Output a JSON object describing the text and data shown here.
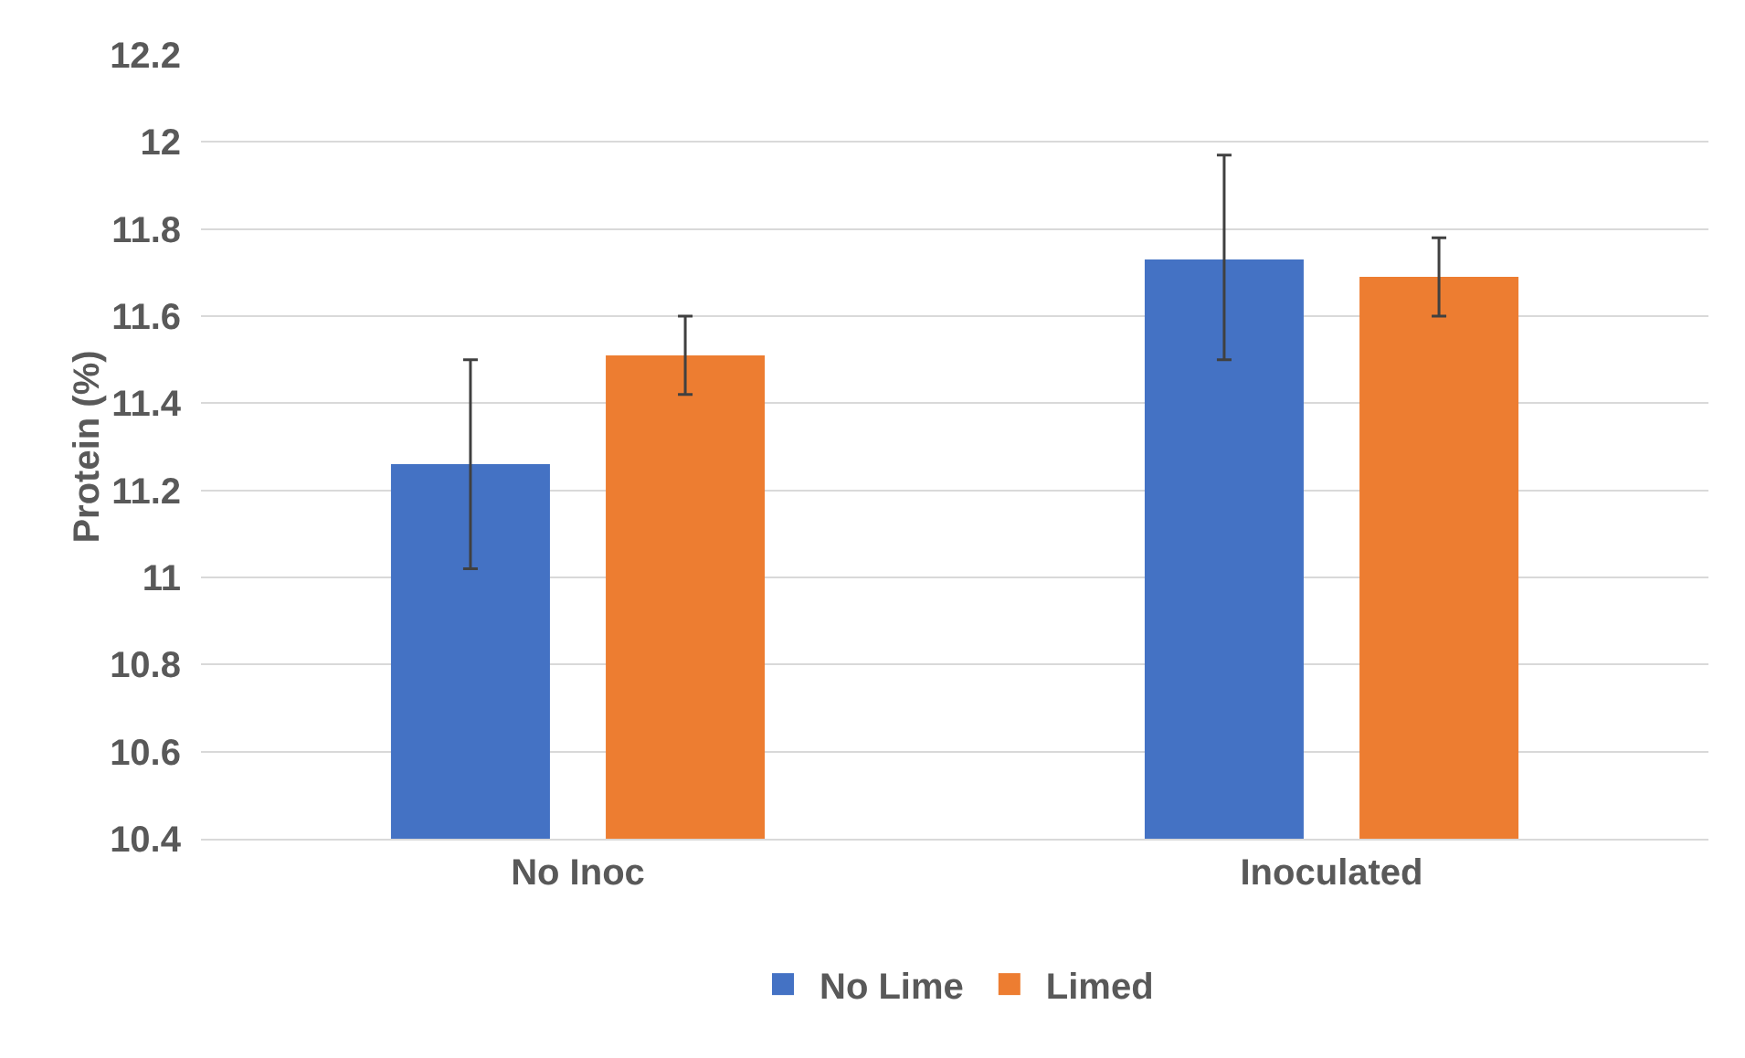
{
  "chart_data": {
    "type": "bar",
    "ylabel": "Protein (%)",
    "categories": [
      "No Inoc",
      "Inoculated"
    ],
    "series": [
      {
        "name": "No Lime",
        "color": "#4472c4",
        "values": [
          11.26,
          11.73
        ],
        "errors": [
          [
            11.02,
            11.5
          ],
          [
            11.5,
            11.97
          ]
        ]
      },
      {
        "name": "Limed",
        "color": "#ed7d31",
        "values": [
          11.51,
          11.69
        ],
        "errors": [
          [
            11.42,
            11.6
          ],
          [
            11.6,
            11.78
          ]
        ]
      }
    ],
    "ylim": [
      10.4,
      12.2
    ],
    "yticks": [
      10.4,
      10.6,
      10.8,
      11,
      11.2,
      11.4,
      11.6,
      11.8,
      12,
      12.2
    ],
    "grid": "y",
    "legend": "bottom"
  }
}
